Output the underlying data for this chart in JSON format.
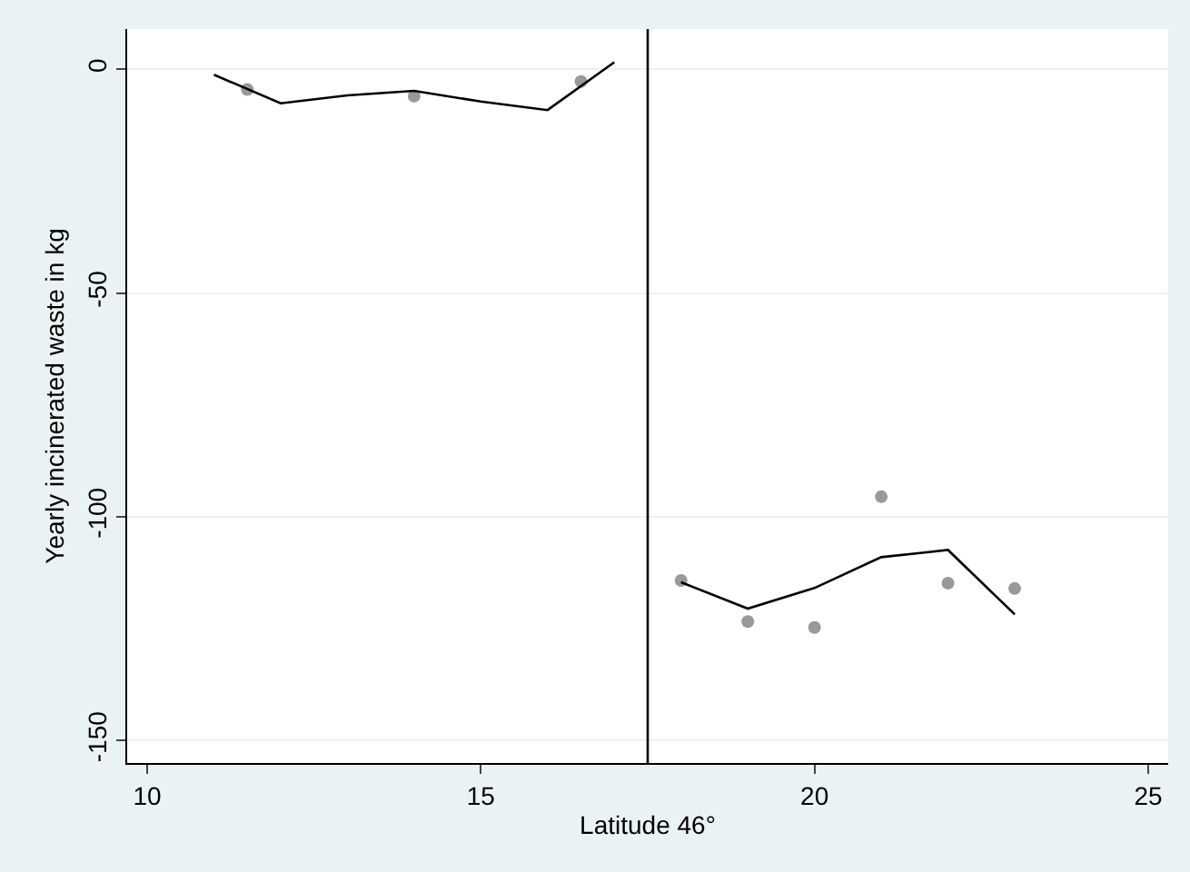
{
  "chart_data": {
    "type": "scatter",
    "xlabel": "Latitude 46°",
    "ylabel": "Yearly incinerated waste in kg",
    "xlim": [
      9.7,
      25.3
    ],
    "xticks": [
      10,
      15,
      20,
      25
    ],
    "ylim": [
      -155,
      9
    ],
    "yticks": [
      0,
      -50,
      -100,
      -150
    ],
    "grid": "y",
    "legend": false,
    "series": [
      {
        "marker": "circle",
        "color": "#999999",
        "x": [
          11.5,
          14,
          16.5,
          18,
          19,
          20,
          21,
          22,
          23
        ],
        "values": [
          -4.5,
          -6,
          -2.7,
          -114.2,
          -123.4,
          -124.7,
          -95.5,
          -114.8,
          -116
        ]
      },
      {
        "type": "line",
        "marker": "none",
        "line_style": "solid",
        "color": "#000000",
        "x": [
          11,
          12,
          13,
          14,
          15,
          16,
          17
        ],
        "values": [
          -1.2,
          -7.6,
          -5.8,
          -4.8,
          -7.2,
          -9.1,
          1.6
        ]
      },
      {
        "type": "line",
        "marker": "none",
        "line_style": "solid",
        "color": "#000000",
        "x": [
          18,
          19,
          20,
          21,
          22,
          23
        ],
        "values": [
          -114.6,
          -120.5,
          -115.9,
          -109,
          -107.4,
          -121.8
        ]
      }
    ],
    "ref_lines": [
      {
        "axis": "x",
        "value": 17.5,
        "color": "#000000"
      }
    ]
  }
}
